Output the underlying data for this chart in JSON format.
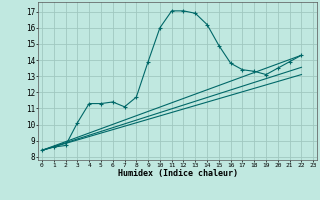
{
  "xlabel": "Humidex (Indice chaleur)",
  "bg_color": "#c0e8e0",
  "grid_color": "#a0c8c0",
  "line_color": "#006868",
  "x_ticks": [
    0,
    1,
    2,
    3,
    4,
    5,
    6,
    7,
    8,
    9,
    10,
    11,
    12,
    13,
    14,
    15,
    16,
    17,
    18,
    19,
    20,
    21,
    22,
    23
  ],
  "y_ticks": [
    8,
    9,
    10,
    11,
    12,
    13,
    14,
    15,
    16,
    17
  ],
  "xlim": [
    -0.3,
    23.3
  ],
  "ylim": [
    7.8,
    17.6
  ],
  "curve_x": [
    0,
    1,
    2,
    3,
    4,
    5,
    6,
    7,
    8,
    9,
    10,
    11,
    12,
    13,
    14,
    15,
    16,
    17,
    18,
    19,
    20,
    21,
    22
  ],
  "curve_y": [
    8.4,
    8.6,
    8.7,
    10.1,
    11.3,
    11.3,
    11.4,
    11.1,
    11.7,
    13.9,
    16.0,
    17.05,
    17.05,
    16.9,
    16.2,
    14.9,
    13.8,
    13.4,
    13.3,
    13.1,
    13.5,
    13.9,
    14.3
  ],
  "line1_x": [
    0,
    22
  ],
  "line1_y": [
    8.4,
    14.3
  ],
  "line2_x": [
    0,
    22
  ],
  "line2_y": [
    8.4,
    13.55
  ],
  "line3_x": [
    0,
    22
  ],
  "line3_y": [
    8.4,
    13.1
  ]
}
